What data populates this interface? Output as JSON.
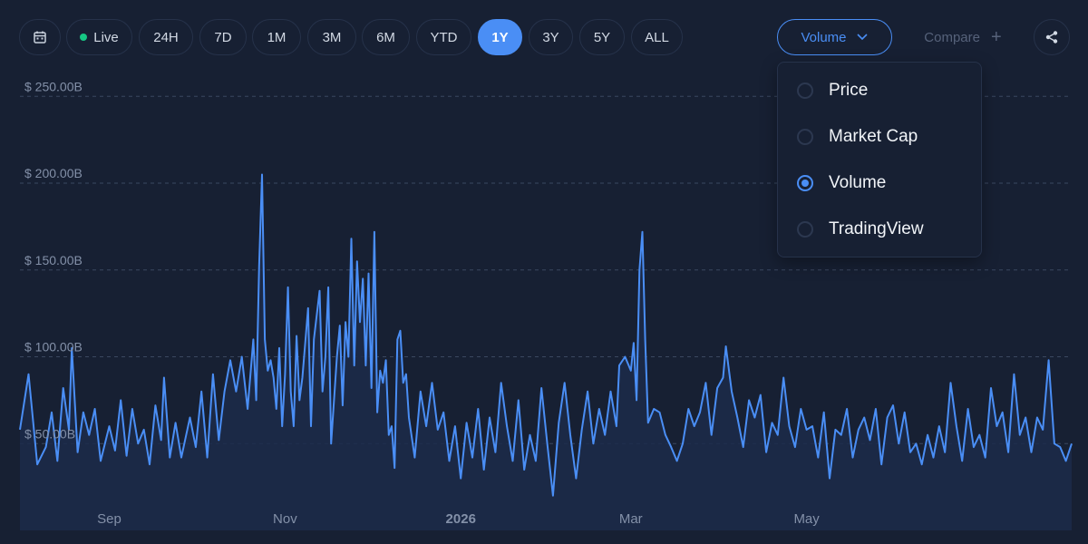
{
  "toolbar": {
    "calendar_icon": "calendar-icon",
    "live_label": "Live",
    "ranges": [
      "24H",
      "7D",
      "1M",
      "3M",
      "6M",
      "YTD",
      "1Y",
      "3Y",
      "5Y",
      "ALL"
    ],
    "active_range": "1Y",
    "metric_label": "Volume",
    "compare_label": "Compare",
    "share_icon": "share-icon"
  },
  "dropdown": {
    "options": [
      {
        "label": "Price",
        "checked": false
      },
      {
        "label": "Market Cap",
        "checked": false
      },
      {
        "label": "Volume",
        "checked": true
      },
      {
        "label": "TradingView",
        "checked": false
      }
    ]
  },
  "colors": {
    "background": "#172033",
    "line": "#4a8ef5",
    "fill": "#1c2c4a",
    "grid": "#3a4760",
    "live": "#16c784"
  },
  "chart_data": {
    "type": "area",
    "y_tick_labels": [
      "$ 50.00B",
      "$ 100.00B",
      "$ 150.00B",
      "$ 200.00B",
      "$ 250.00B"
    ],
    "y_ticks": [
      50,
      100,
      150,
      200,
      250
    ],
    "ylim": [
      0,
      270
    ],
    "x_tick_labels": [
      "Sep",
      "Nov",
      "2026",
      "Mar",
      "May"
    ],
    "x_tick_days": [
      31,
      92,
      153,
      212,
      273
    ],
    "x_tick_bold": [
      false,
      false,
      true,
      false,
      false
    ],
    "xlim": [
      0,
      365
    ],
    "grid": true,
    "series": [
      {
        "values": [
          [
            0,
            58
          ],
          [
            3,
            90
          ],
          [
            6,
            38
          ],
          [
            9,
            48
          ],
          [
            11,
            68
          ],
          [
            13,
            40
          ],
          [
            15,
            82
          ],
          [
            17,
            58
          ],
          [
            18,
            105
          ],
          [
            20,
            45
          ],
          [
            22,
            68
          ],
          [
            24,
            55
          ],
          [
            26,
            70
          ],
          [
            28,
            40
          ],
          [
            31,
            60
          ],
          [
            33,
            46
          ],
          [
            35,
            75
          ],
          [
            37,
            43
          ],
          [
            39,
            70
          ],
          [
            41,
            50
          ],
          [
            43,
            58
          ],
          [
            45,
            38
          ],
          [
            47,
            72
          ],
          [
            49,
            52
          ],
          [
            50,
            88
          ],
          [
            52,
            42
          ],
          [
            54,
            62
          ],
          [
            56,
            42
          ],
          [
            59,
            65
          ],
          [
            61,
            48
          ],
          [
            63,
            80
          ],
          [
            65,
            42
          ],
          [
            67,
            90
          ],
          [
            69,
            52
          ],
          [
            71,
            80
          ],
          [
            73,
            98
          ],
          [
            75,
            80
          ],
          [
            77,
            100
          ],
          [
            79,
            70
          ],
          [
            81,
            110
          ],
          [
            82,
            75
          ],
          [
            83,
            152
          ],
          [
            84,
            205
          ],
          [
            85,
            110
          ],
          [
            86,
            92
          ],
          [
            87,
            98
          ],
          [
            88,
            88
          ],
          [
            89,
            70
          ],
          [
            90,
            105
          ],
          [
            91,
            60
          ],
          [
            92,
            90
          ],
          [
            93,
            140
          ],
          [
            94,
            80
          ],
          [
            95,
            60
          ],
          [
            96,
            112
          ],
          [
            97,
            75
          ],
          [
            98,
            88
          ],
          [
            100,
            128
          ],
          [
            101,
            60
          ],
          [
            102,
            110
          ],
          [
            104,
            138
          ],
          [
            105,
            80
          ],
          [
            106,
            100
          ],
          [
            107,
            140
          ],
          [
            108,
            50
          ],
          [
            110,
            100
          ],
          [
            111,
            118
          ],
          [
            112,
            72
          ],
          [
            113,
            120
          ],
          [
            114,
            100
          ],
          [
            115,
            168
          ],
          [
            116,
            95
          ],
          [
            117,
            155
          ],
          [
            118,
            120
          ],
          [
            119,
            145
          ],
          [
            120,
            95
          ],
          [
            121,
            148
          ],
          [
            122,
            82
          ],
          [
            123,
            172
          ],
          [
            124,
            68
          ],
          [
            125,
            92
          ],
          [
            126,
            85
          ],
          [
            127,
            98
          ],
          [
            128,
            55
          ],
          [
            129,
            60
          ],
          [
            130,
            36
          ],
          [
            131,
            110
          ],
          [
            132,
            115
          ],
          [
            133,
            85
          ],
          [
            134,
            90
          ],
          [
            135,
            65
          ],
          [
            137,
            42
          ],
          [
            139,
            80
          ],
          [
            141,
            60
          ],
          [
            143,
            85
          ],
          [
            145,
            58
          ],
          [
            147,
            68
          ],
          [
            149,
            40
          ],
          [
            151,
            60
          ],
          [
            153,
            30
          ],
          [
            155,
            62
          ],
          [
            157,
            42
          ],
          [
            159,
            70
          ],
          [
            161,
            35
          ],
          [
            163,
            65
          ],
          [
            165,
            45
          ],
          [
            167,
            85
          ],
          [
            169,
            60
          ],
          [
            171,
            40
          ],
          [
            173,
            75
          ],
          [
            175,
            35
          ],
          [
            177,
            55
          ],
          [
            179,
            40
          ],
          [
            181,
            82
          ],
          [
            183,
            50
          ],
          [
            185,
            20
          ],
          [
            187,
            62
          ],
          [
            189,
            85
          ],
          [
            191,
            55
          ],
          [
            193,
            30
          ],
          [
            195,
            58
          ],
          [
            197,
            80
          ],
          [
            199,
            50
          ],
          [
            201,
            70
          ],
          [
            203,
            55
          ],
          [
            205,
            80
          ],
          [
            207,
            60
          ],
          [
            208,
            95
          ],
          [
            210,
            100
          ],
          [
            212,
            92
          ],
          [
            213,
            108
          ],
          [
            214,
            75
          ],
          [
            215,
            150
          ],
          [
            216,
            172
          ],
          [
            217,
            110
          ],
          [
            218,
            62
          ],
          [
            220,
            70
          ],
          [
            222,
            68
          ],
          [
            224,
            55
          ],
          [
            226,
            48
          ],
          [
            228,
            40
          ],
          [
            230,
            50
          ],
          [
            232,
            70
          ],
          [
            234,
            60
          ],
          [
            236,
            68
          ],
          [
            238,
            85
          ],
          [
            240,
            55
          ],
          [
            242,
            82
          ],
          [
            244,
            88
          ],
          [
            245,
            106
          ],
          [
            247,
            80
          ],
          [
            249,
            65
          ],
          [
            251,
            48
          ],
          [
            253,
            75
          ],
          [
            255,
            65
          ],
          [
            257,
            78
          ],
          [
            259,
            45
          ],
          [
            261,
            62
          ],
          [
            263,
            55
          ],
          [
            265,
            88
          ],
          [
            267,
            60
          ],
          [
            269,
            48
          ],
          [
            271,
            70
          ],
          [
            273,
            58
          ],
          [
            275,
            60
          ],
          [
            277,
            42
          ],
          [
            279,
            68
          ],
          [
            281,
            30
          ],
          [
            283,
            58
          ],
          [
            285,
            55
          ],
          [
            287,
            70
          ],
          [
            289,
            42
          ],
          [
            291,
            58
          ],
          [
            293,
            65
          ],
          [
            295,
            52
          ],
          [
            297,
            70
          ],
          [
            299,
            38
          ],
          [
            301,
            65
          ],
          [
            303,
            72
          ],
          [
            305,
            50
          ],
          [
            307,
            68
          ],
          [
            309,
            45
          ],
          [
            311,
            50
          ],
          [
            313,
            38
          ],
          [
            315,
            55
          ],
          [
            317,
            42
          ],
          [
            319,
            60
          ],
          [
            321,
            45
          ],
          [
            323,
            85
          ],
          [
            325,
            60
          ],
          [
            327,
            40
          ],
          [
            329,
            70
          ],
          [
            331,
            48
          ],
          [
            333,
            55
          ],
          [
            335,
            42
          ],
          [
            337,
            82
          ],
          [
            339,
            60
          ],
          [
            341,
            68
          ],
          [
            343,
            45
          ],
          [
            345,
            90
          ],
          [
            347,
            55
          ],
          [
            349,
            65
          ],
          [
            351,
            45
          ],
          [
            353,
            65
          ],
          [
            355,
            58
          ],
          [
            357,
            98
          ],
          [
            359,
            50
          ],
          [
            361,
            48
          ],
          [
            363,
            40
          ],
          [
            365,
            50
          ]
        ]
      }
    ]
  }
}
